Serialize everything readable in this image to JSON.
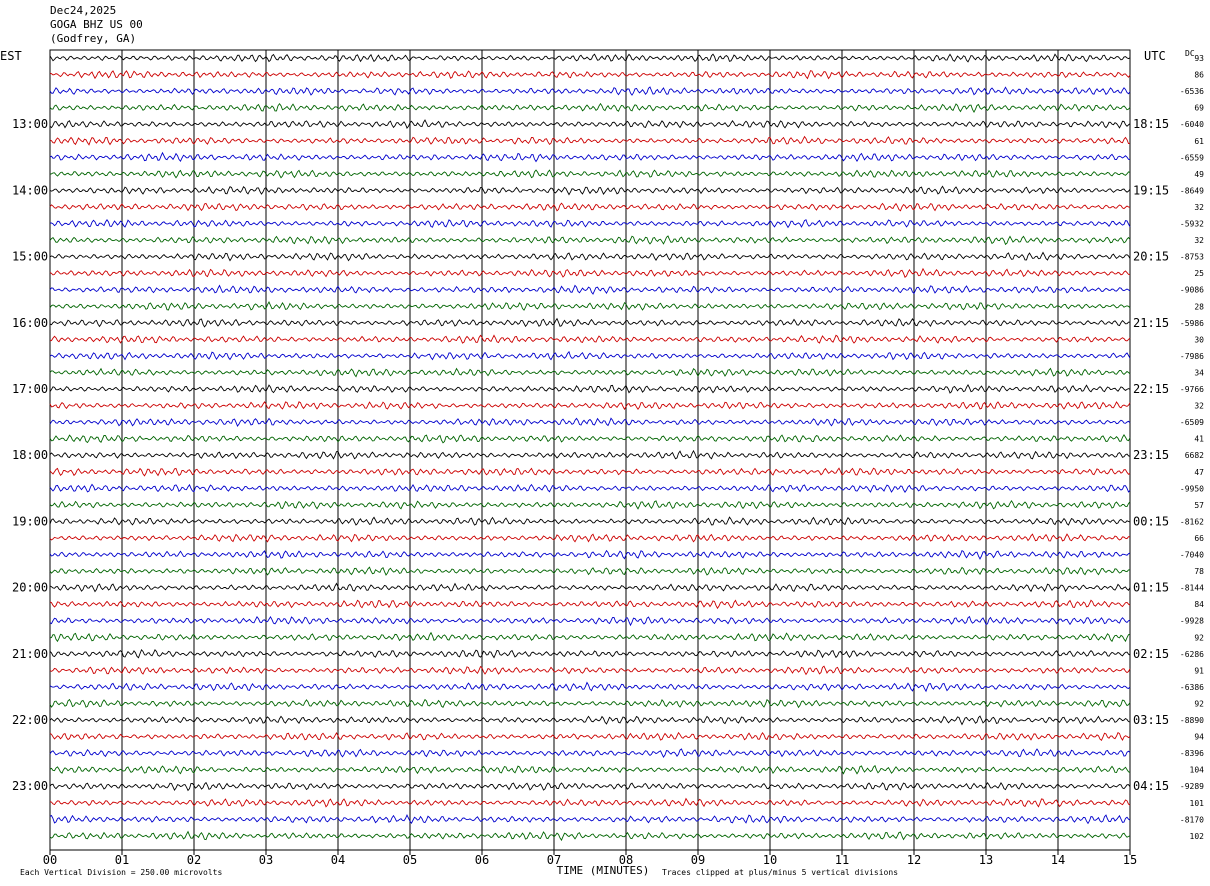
{
  "header": {
    "date": "Dec24,2025",
    "station": "GOGA BHZ US 00",
    "location": "(Godfrey, GA)"
  },
  "axes": {
    "left_tz": "EST",
    "right_tz": "UTC",
    "dc_label": "DC",
    "x_label": "TIME (MINUTES)"
  },
  "footer": {
    "scale_note": "Each Vertical Division =  250.00 microvolts",
    "clip_note": "Traces clipped at plus/minus 5 vertical divisions"
  },
  "colors": {
    "trace_cycle": [
      "#000000",
      "#cc0000",
      "#0000cc",
      "#006400"
    ],
    "grid": "#000000",
    "background": "#ffffff"
  },
  "chart_data": {
    "type": "line",
    "title": "GOGA BHZ US 00",
    "xlabel": "TIME (MINUTES)",
    "xlim": [
      0,
      15
    ],
    "x_ticks": [
      "00",
      "01",
      "02",
      "03",
      "04",
      "05",
      "06",
      "07",
      "08",
      "09",
      "10",
      "11",
      "12",
      "13",
      "14",
      "15"
    ],
    "minutes_per_line": 15,
    "grid": true,
    "left_hour_labels": [
      "13:00",
      "14:00",
      "15:00",
      "16:00",
      "17:00",
      "18:00",
      "19:00",
      "20:00",
      "21:00",
      "22:00",
      "23:00"
    ],
    "right_hour_labels": [
      "18:15",
      "19:15",
      "20:15",
      "21:15",
      "22:15",
      "23:15",
      "00:15",
      "01:15",
      "02:15",
      "03:15",
      "04:15"
    ],
    "dc_offsets": [
      "93",
      "86",
      "-6536",
      "69",
      "-6040",
      "61",
      "-6559",
      "49",
      "-8649",
      "32",
      "-5932",
      "32",
      "-8753",
      "25",
      "-9086",
      "28",
      "-5986",
      "30",
      "-7986",
      "34",
      "-9766",
      "32",
      "-6509",
      "41",
      "6682",
      "47",
      "-9950",
      "57",
      "-8162",
      "66",
      "-7040",
      "78",
      "-8144",
      "84",
      "-9928",
      "92",
      "-6286",
      "91",
      "-6386",
      "92",
      "-8890",
      "94",
      "-8396",
      "104",
      "-9289",
      "101",
      "-8170",
      "102"
    ],
    "series": [
      {
        "name": "black",
        "color": "#000000"
      },
      {
        "name": "red",
        "color": "#cc0000"
      },
      {
        "name": "blue",
        "color": "#0000cc"
      },
      {
        "name": "green",
        "color": "#006400"
      }
    ]
  }
}
